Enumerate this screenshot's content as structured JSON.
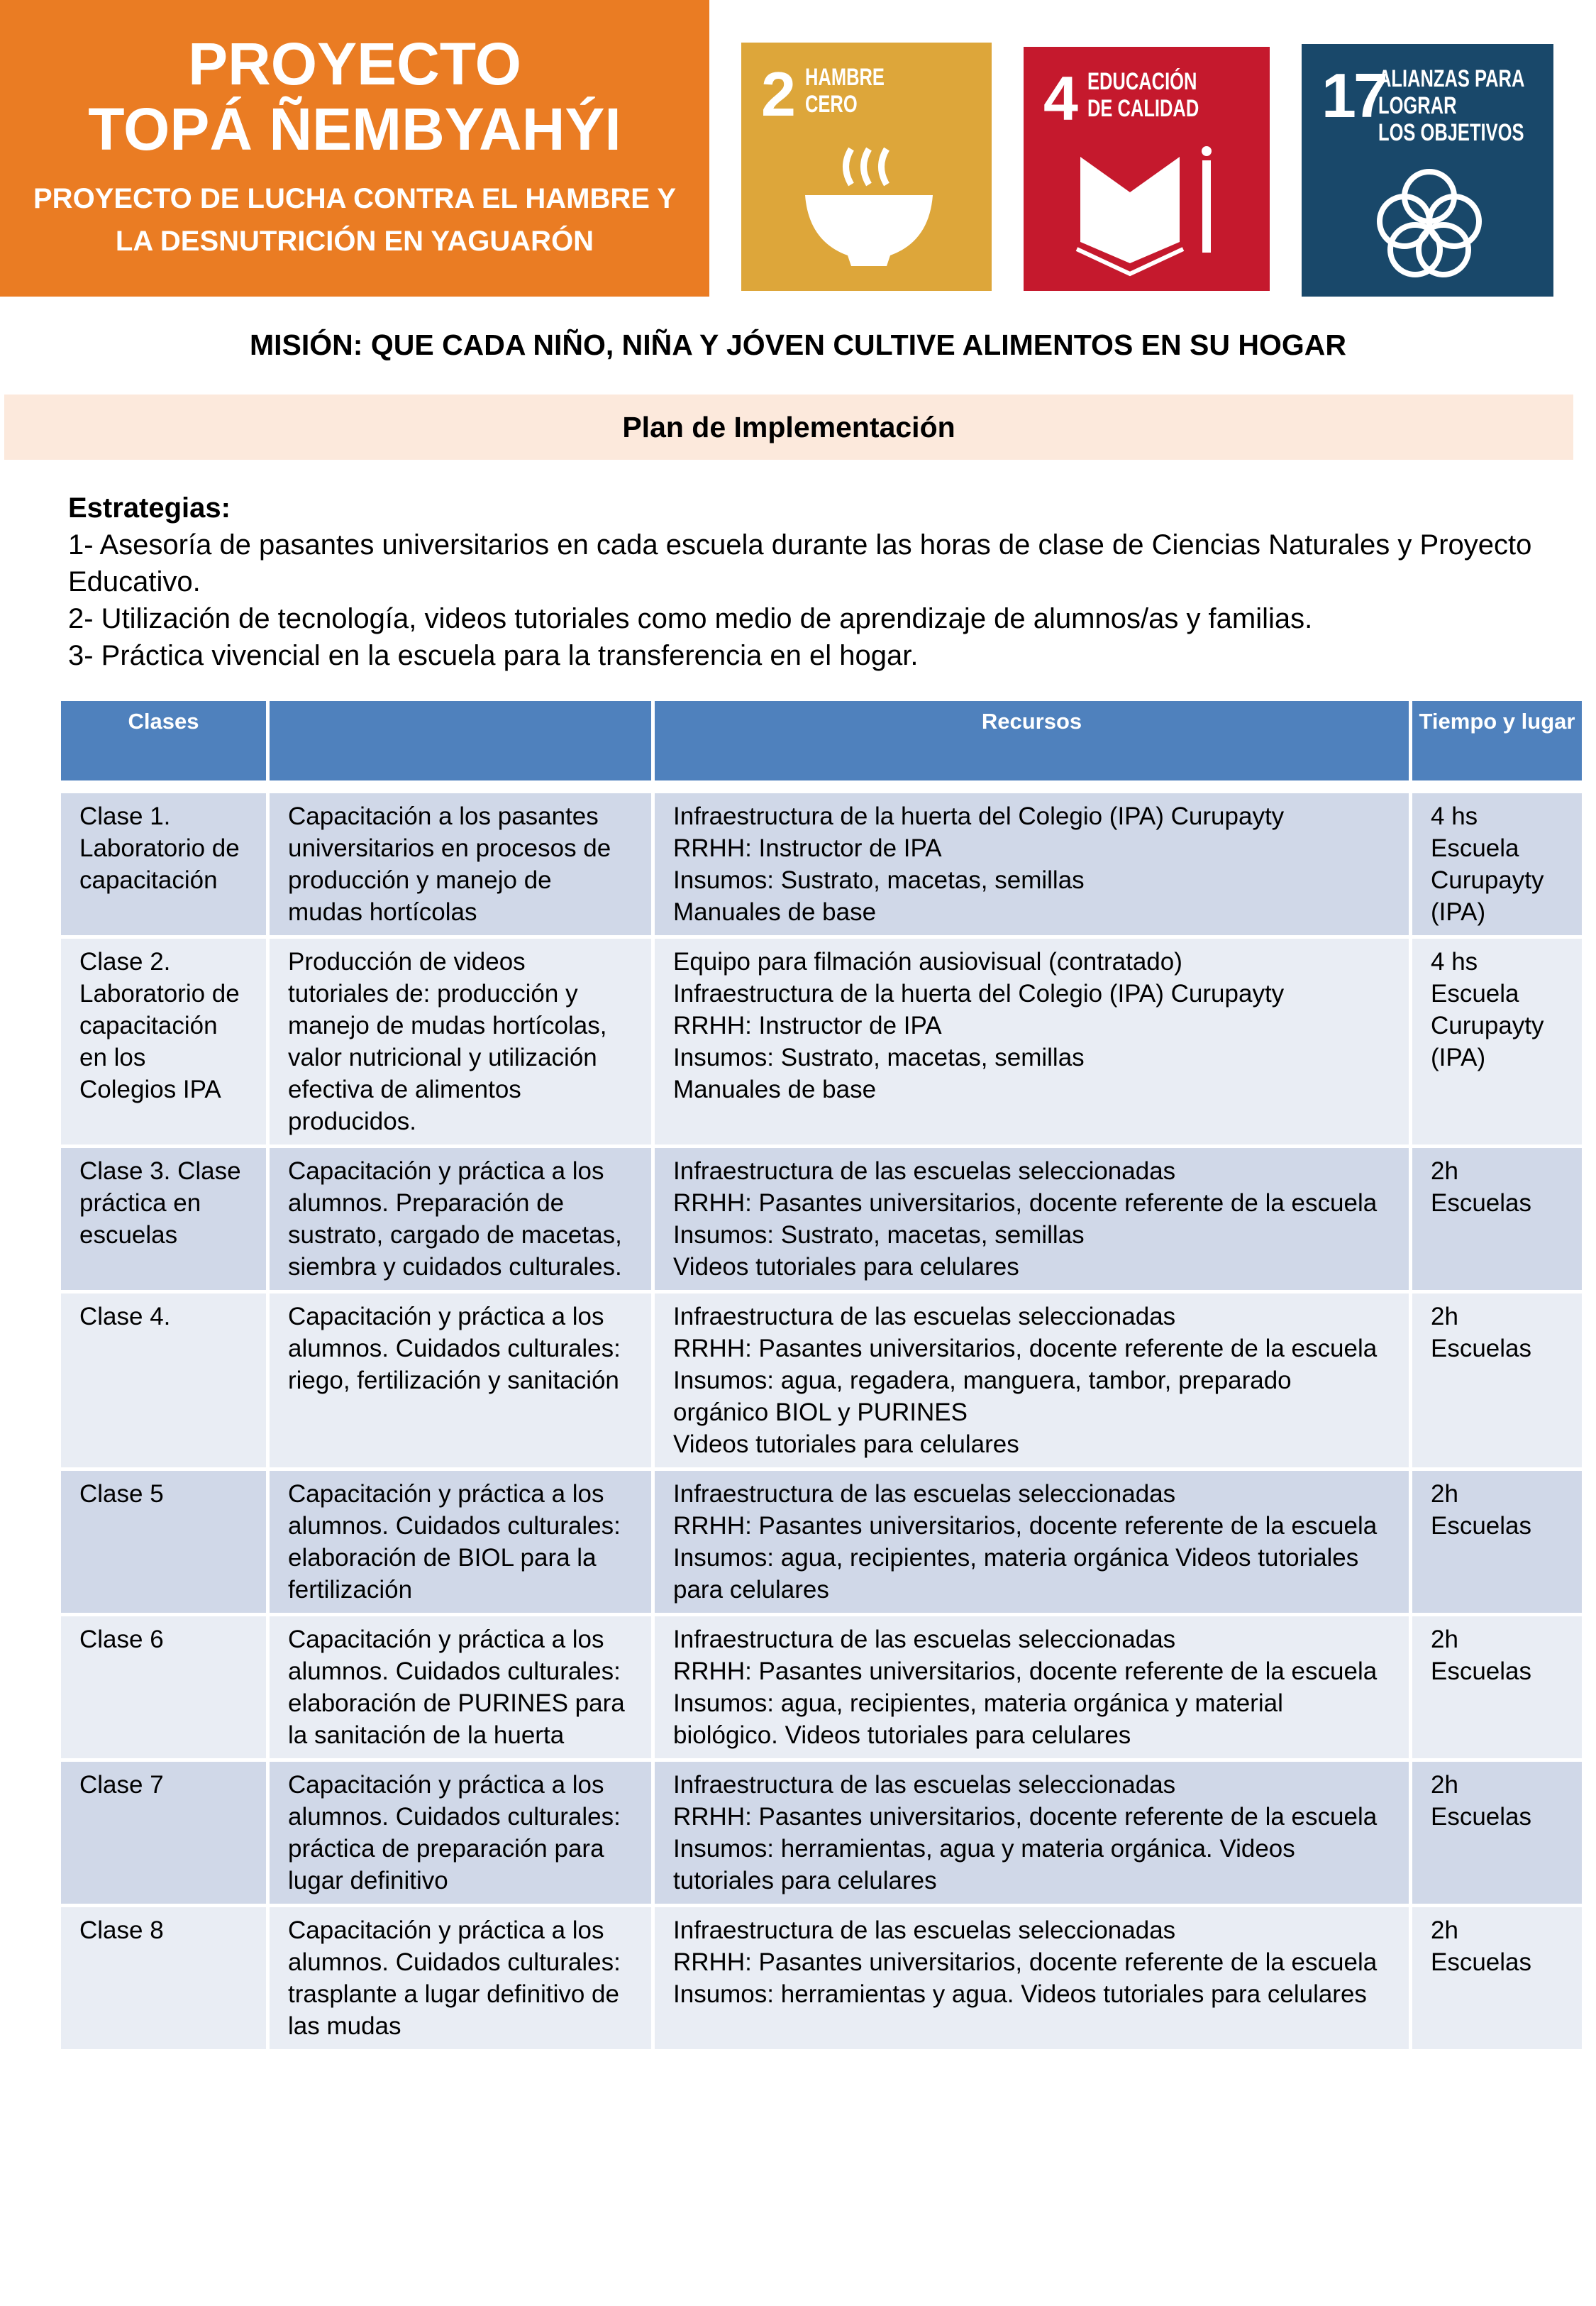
{
  "hero": {
    "title_line1": "PROYECTO",
    "title_line2": "TOPÁ ÑEMBYAHÝI",
    "subtitle_line1": "PROYECTO DE LUCHA CONTRA EL HAMBRE Y",
    "subtitle_line2": "LA DESNUTRICIÓN EN YAGUARÓN",
    "color": "#ea7c23"
  },
  "sdgs": [
    {
      "number": "2",
      "label_line1": "HAMBRE",
      "label_line2": "CERO",
      "label_line3": "",
      "color": "#dda63a",
      "icon": "bowl-icon"
    },
    {
      "number": "4",
      "label_line1": "EDUCACIÓN",
      "label_line2": "DE CALIDAD",
      "label_line3": "",
      "color": "#c5192d",
      "icon": "book-icon"
    },
    {
      "number": "17",
      "label_line1": "ALIANZAS PARA",
      "label_line2": "LOGRAR",
      "label_line3": "LOS OBJETIVOS",
      "color": "#19486a",
      "icon": "flower-icon"
    }
  ],
  "mission": "MISIÓN: QUE CADA NIÑO, NIÑA Y JÓVEN CULTIVE ALIMENTOS EN SU HOGAR",
  "plan_title": "Plan de Implementación",
  "strategies": {
    "heading": "Estrategias:",
    "items": [
      "1- Asesoría de pasantes universitarios en cada escuela durante las horas de clase de Ciencias Naturales y Proyecto Educativo.",
      "2- Utilización de tecnología, videos tutoriales como medio de aprendizaje de alumnos/as y familias.",
      "3- Práctica vivencial en la escuela para la transferencia en el hogar."
    ]
  },
  "table": {
    "headers": [
      "Clases",
      "",
      "Recursos",
      "Tiempo y lugar"
    ],
    "rows": [
      {
        "clase": "Clase 1. Laboratorio de capacitación",
        "descripcion": "Capacitación a los pasantes universitarios en procesos de  producción y manejo de mudas hortícolas",
        "recursos": [
          "Infraestructura de la huerta del Colegio (IPA) Curupayty",
          "RRHH: Instructor de IPA",
          "Insumos: Sustrato, macetas, semillas",
          "Manuales de base"
        ],
        "tiempo": [
          "4 hs",
          "Escuela Curupayty (IPA)"
        ]
      },
      {
        "clase": "Clase 2. Laboratorio de capacitación en los Colegios IPA",
        "descripcion": "Producción de videos tutoriales de: producción y manejo de mudas hortícolas, valor nutricional y utilización efectiva de alimentos producidos.",
        "recursos": [
          "Equipo para filmación ausiovisual (contratado)",
          "Infraestructura de la huerta del Colegio (IPA) Curupayty",
          "RRHH: Instructor de IPA",
          "Insumos: Sustrato, macetas, semillas",
          "Manuales de base"
        ],
        "tiempo": [
          "4 hs",
          "Escuela Curupayty (IPA)"
        ]
      },
      {
        "clase": "Clase 3. Clase práctica en escuelas",
        "descripcion": "Capacitación y práctica a los alumnos. Preparación de sustrato, cargado de macetas, siembra y cuidados culturales.",
        "recursos": [
          "Infraestructura de las escuelas seleccionadas",
          "RRHH: Pasantes universitarios, docente referente de la escuela",
          "Insumos: Sustrato, macetas, semillas",
          "Videos tutoriales para celulares"
        ],
        "tiempo": [
          "2h",
          "Escuelas"
        ]
      },
      {
        "clase": "Clase 4.",
        "descripcion": "Capacitación y práctica a los alumnos. Cuidados culturales: riego, fertilización y sanitación",
        "recursos": [
          "Infraestructura de las escuelas seleccionadas",
          "RRHH: Pasantes universitarios, docente referente de la escuela",
          "Insumos: agua, regadera, manguera, tambor, preparado orgánico BIOL y PURINES",
          "Videos tutoriales para celulares"
        ],
        "tiempo": [
          "2h",
          "Escuelas"
        ]
      },
      {
        "clase": "Clase 5",
        "descripcion": "Capacitación y práctica a los alumnos. Cuidados culturales: elaboración de BIOL para la fertilización",
        "recursos": [
          "Infraestructura de las escuelas seleccionadas",
          "RRHH: Pasantes universitarios, docente referente de la escuela",
          "Insumos: agua, recipientes, materia orgánica Videos tutoriales para celulares"
        ],
        "tiempo": [
          "2h",
          "Escuelas"
        ]
      },
      {
        "clase": "Clase 6",
        "descripcion": "Capacitación y práctica a los alumnos. Cuidados culturales: elaboración de PURINES para la sanitación de la huerta",
        "recursos": [
          "Infraestructura de las escuelas seleccionadas",
          "RRHH: Pasantes universitarios, docente referente de la escuela",
          "Insumos: agua, recipientes, materia orgánica y material biológico. Videos tutoriales para celulares"
        ],
        "tiempo": [
          "2h",
          "Escuelas"
        ]
      },
      {
        "clase": "Clase 7",
        "descripcion": "Capacitación y práctica a los alumnos. Cuidados culturales: práctica de preparación para lugar definitivo",
        "recursos": [
          "Infraestructura de las escuelas seleccionadas",
          "RRHH: Pasantes universitarios, docente referente de la escuela",
          "Insumos: herramientas, agua y materia orgánica. Videos tutoriales para celulares"
        ],
        "tiempo": [
          "2h",
          "Escuelas"
        ]
      },
      {
        "clase": "Clase 8",
        "descripcion": "Capacitación y práctica a los alumnos. Cuidados culturales: trasplante a lugar definitivo de las mudas",
        "recursos": [
          "Infraestructura de las escuelas seleccionadas",
          "RRHH: Pasantes universitarios, docente referente de la escuela",
          "Insumos: herramientas y agua. Videos tutoriales para celulares"
        ],
        "tiempo": [
          "2h",
          "Escuelas"
        ]
      }
    ]
  },
  "colors": {
    "header": "#4f81bd",
    "row_dark": "#d0d8e8",
    "row_light": "#e9edf4",
    "plan_bg": "#fce9dc"
  }
}
